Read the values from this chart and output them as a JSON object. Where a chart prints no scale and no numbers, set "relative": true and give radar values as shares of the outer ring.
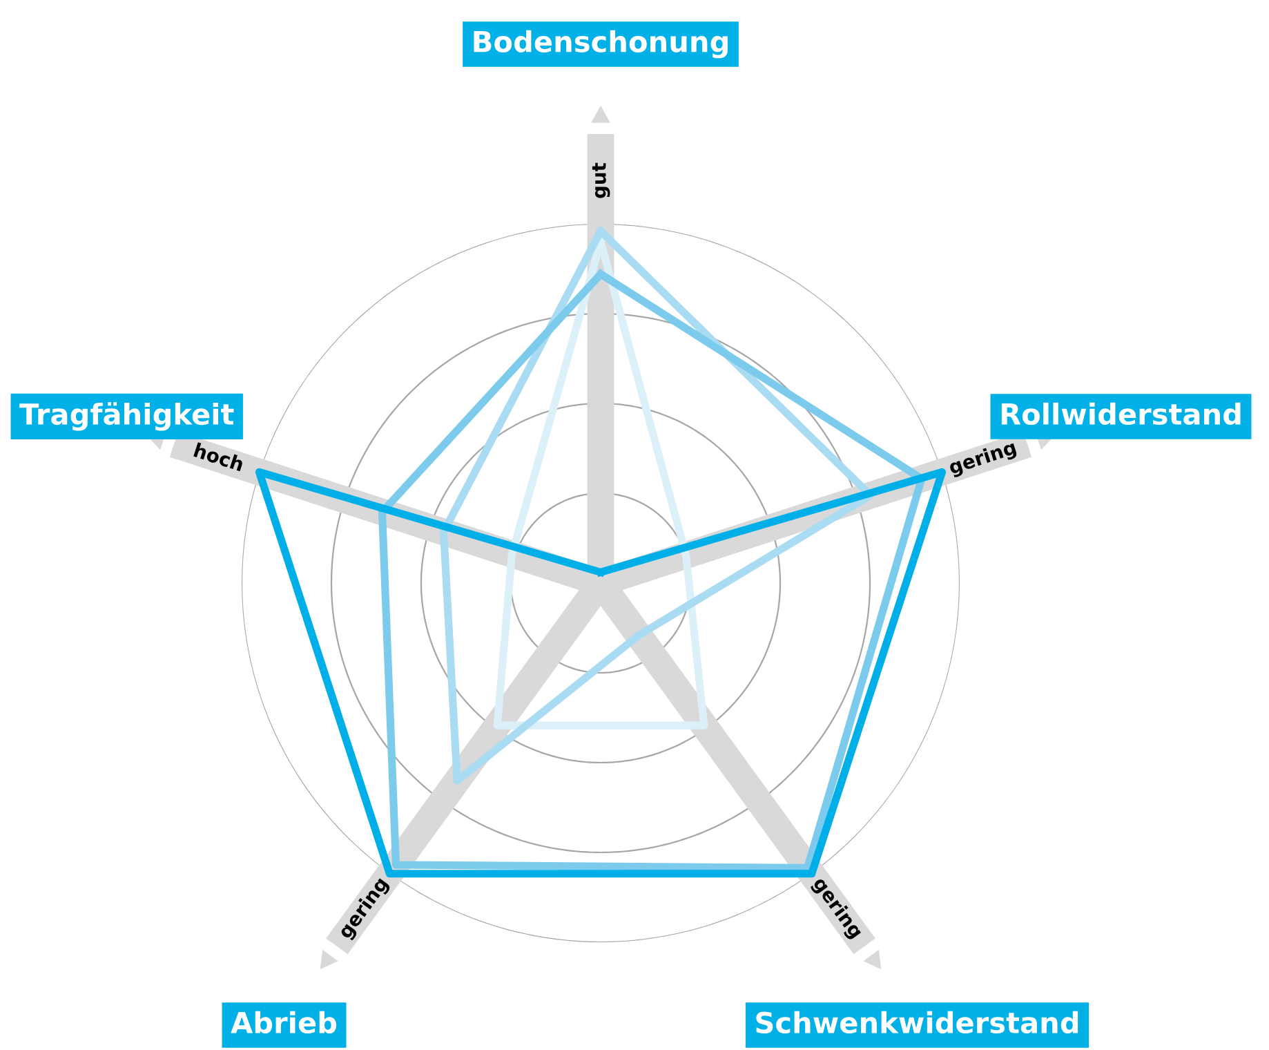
{
  "chart_data": {
    "type": "radar",
    "relative": true,
    "grid": true,
    "legend": false,
    "marker": "none",
    "line_style": "solid",
    "categories": [
      "Bodenschonung",
      "Rollwiderstand",
      "Schwenkwiderstand",
      "Abrieb",
      "Tragfähigkeit"
    ],
    "annotations": [
      "gut",
      "gering",
      "gering",
      "gering",
      "hoch"
    ],
    "series": [
      {
        "color": "#dcf0fa",
        "values": [
          0.95,
          0.25,
          0.49,
          0.49,
          0.26
        ]
      },
      {
        "color": "#a9dcf3",
        "values": [
          0.98,
          0.79,
          0.18,
          0.68,
          0.46
        ]
      },
      {
        "color": "#7ccbec",
        "values": [
          0.86,
          0.94,
          0.98,
          0.97,
          0.64
        ]
      },
      {
        "color": "#00aee8",
        "values": [
          0.03,
          1,
          1,
          1,
          1
        ]
      }
    ]
  }
}
